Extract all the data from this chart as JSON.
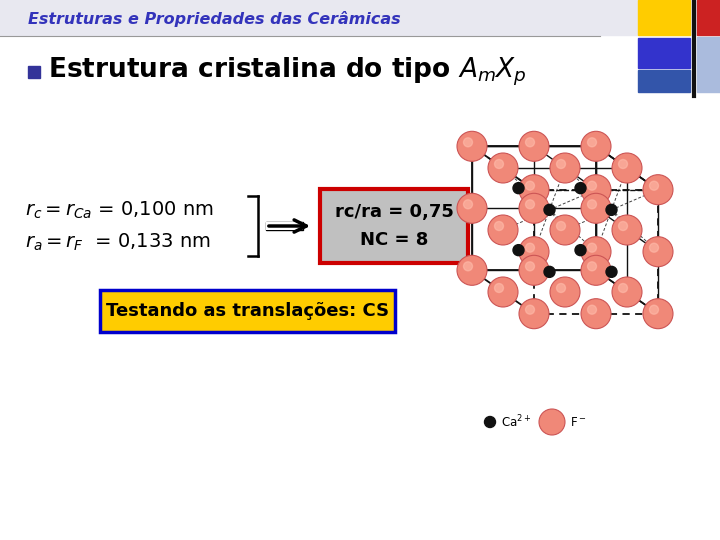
{
  "slide_bg": "#ffffff",
  "header_bg": "#e8e8f0",
  "title": "Estruturas e Propriedades das Cerâmicas",
  "title_color": "#3333bb",
  "title_fontsize": 11.5,
  "header_line_color": "#888888",
  "bullet_color": "#333399",
  "bullet_square_color": "#333399",
  "result_text1": "rc/ra = 0,75",
  "result_text2": "NC = 8",
  "result_box_color": "#c0c0c0",
  "result_border_color": "#cc0000",
  "yellow_box_text": "Testando as translações: CS",
  "yellow_box_bg": "#ffcc00",
  "yellow_box_border": "#0000cc",
  "crystal_salmon": "#f08878",
  "crystal_salmon_edge": "#cc5555",
  "crystal_black": "#111111",
  "top_yellow": "#ffcc00",
  "top_blue1": "#3333cc",
  "top_blue2": "#3355aa",
  "top_red": "#cc2222"
}
